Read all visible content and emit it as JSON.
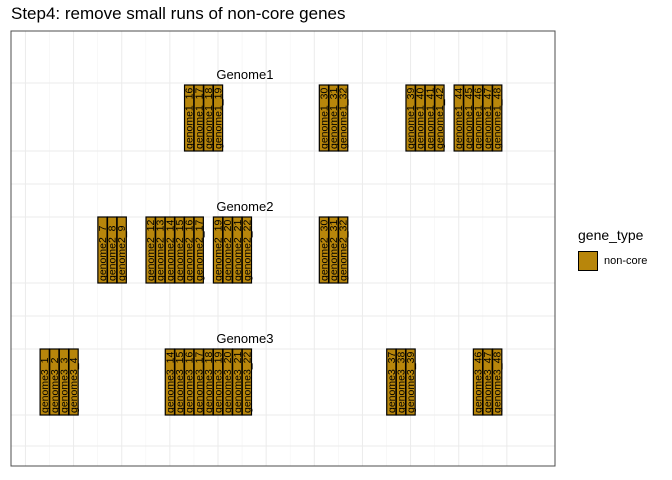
{
  "chart_data": {
    "type": "gene-arrow",
    "title": "Step4: remove small runs of non-core genes",
    "xlim": [
      -3,
      110
    ],
    "fill_color": "#B8860B",
    "legend": {
      "title": "gene_type",
      "entries": [
        {
          "label": "non-core",
          "color": "#B8860B"
        }
      ],
      "position": "right"
    },
    "grid": true,
    "genomes": [
      {
        "name": "Genome1",
        "genes": [
          {
            "label": "genome1_16",
            "x": 34
          },
          {
            "label": "genome1_17",
            "x": 36
          },
          {
            "label": "genome1_18",
            "x": 38
          },
          {
            "label": "genome1_19",
            "x": 40
          },
          {
            "label": "genome1_30",
            "x": 62
          },
          {
            "label": "genome1_31",
            "x": 64
          },
          {
            "label": "genome1_32",
            "x": 66
          },
          {
            "label": "genome1_39",
            "x": 80
          },
          {
            "label": "genome1_40",
            "x": 82
          },
          {
            "label": "genome1_41",
            "x": 84
          },
          {
            "label": "genome1_42",
            "x": 86
          },
          {
            "label": "genome1_44",
            "x": 90
          },
          {
            "label": "genome1_45",
            "x": 92
          },
          {
            "label": "genome1_46",
            "x": 94
          },
          {
            "label": "genome1_47",
            "x": 96
          },
          {
            "label": "genome1_48",
            "x": 98
          }
        ]
      },
      {
        "name": "Genome2",
        "genes": [
          {
            "label": "genome2_7",
            "x": 16
          },
          {
            "label": "genome2_8",
            "x": 18
          },
          {
            "label": "genome2_9",
            "x": 20
          },
          {
            "label": "genome2_12",
            "x": 26
          },
          {
            "label": "genome2_13",
            "x": 28
          },
          {
            "label": "genome2_14",
            "x": 30
          },
          {
            "label": "genome2_15",
            "x": 32
          },
          {
            "label": "genome2_16",
            "x": 34
          },
          {
            "label": "genome2_17",
            "x": 36
          },
          {
            "label": "genome2_19",
            "x": 40
          },
          {
            "label": "genome2_20",
            "x": 42
          },
          {
            "label": "genome2_21",
            "x": 44
          },
          {
            "label": "genome2_22",
            "x": 46
          },
          {
            "label": "genome2_30",
            "x": 62
          },
          {
            "label": "genome2_31",
            "x": 64
          },
          {
            "label": "genome2_32",
            "x": 66
          }
        ]
      },
      {
        "name": "Genome3",
        "genes": [
          {
            "label": "genome3_1",
            "x": 4
          },
          {
            "label": "genome3_2",
            "x": 6
          },
          {
            "label": "genome3_3",
            "x": 8
          },
          {
            "label": "genome3_4",
            "x": 10
          },
          {
            "label": "genome3_14",
            "x": 30
          },
          {
            "label": "genome3_15",
            "x": 32
          },
          {
            "label": "genome3_16",
            "x": 34
          },
          {
            "label": "genome3_17",
            "x": 36
          },
          {
            "label": "genome3_18",
            "x": 38
          },
          {
            "label": "genome3_19",
            "x": 40
          },
          {
            "label": "genome3_20",
            "x": 42
          },
          {
            "label": "genome3_21",
            "x": 44
          },
          {
            "label": "genome3_22",
            "x": 46
          },
          {
            "label": "genome3_37",
            "x": 76
          },
          {
            "label": "genome3_38",
            "x": 78
          },
          {
            "label": "genome3_39",
            "x": 80
          },
          {
            "label": "genome3_46",
            "x": 94
          },
          {
            "label": "genome3_47",
            "x": 96
          },
          {
            "label": "genome3_48",
            "x": 98
          }
        ]
      }
    ]
  }
}
